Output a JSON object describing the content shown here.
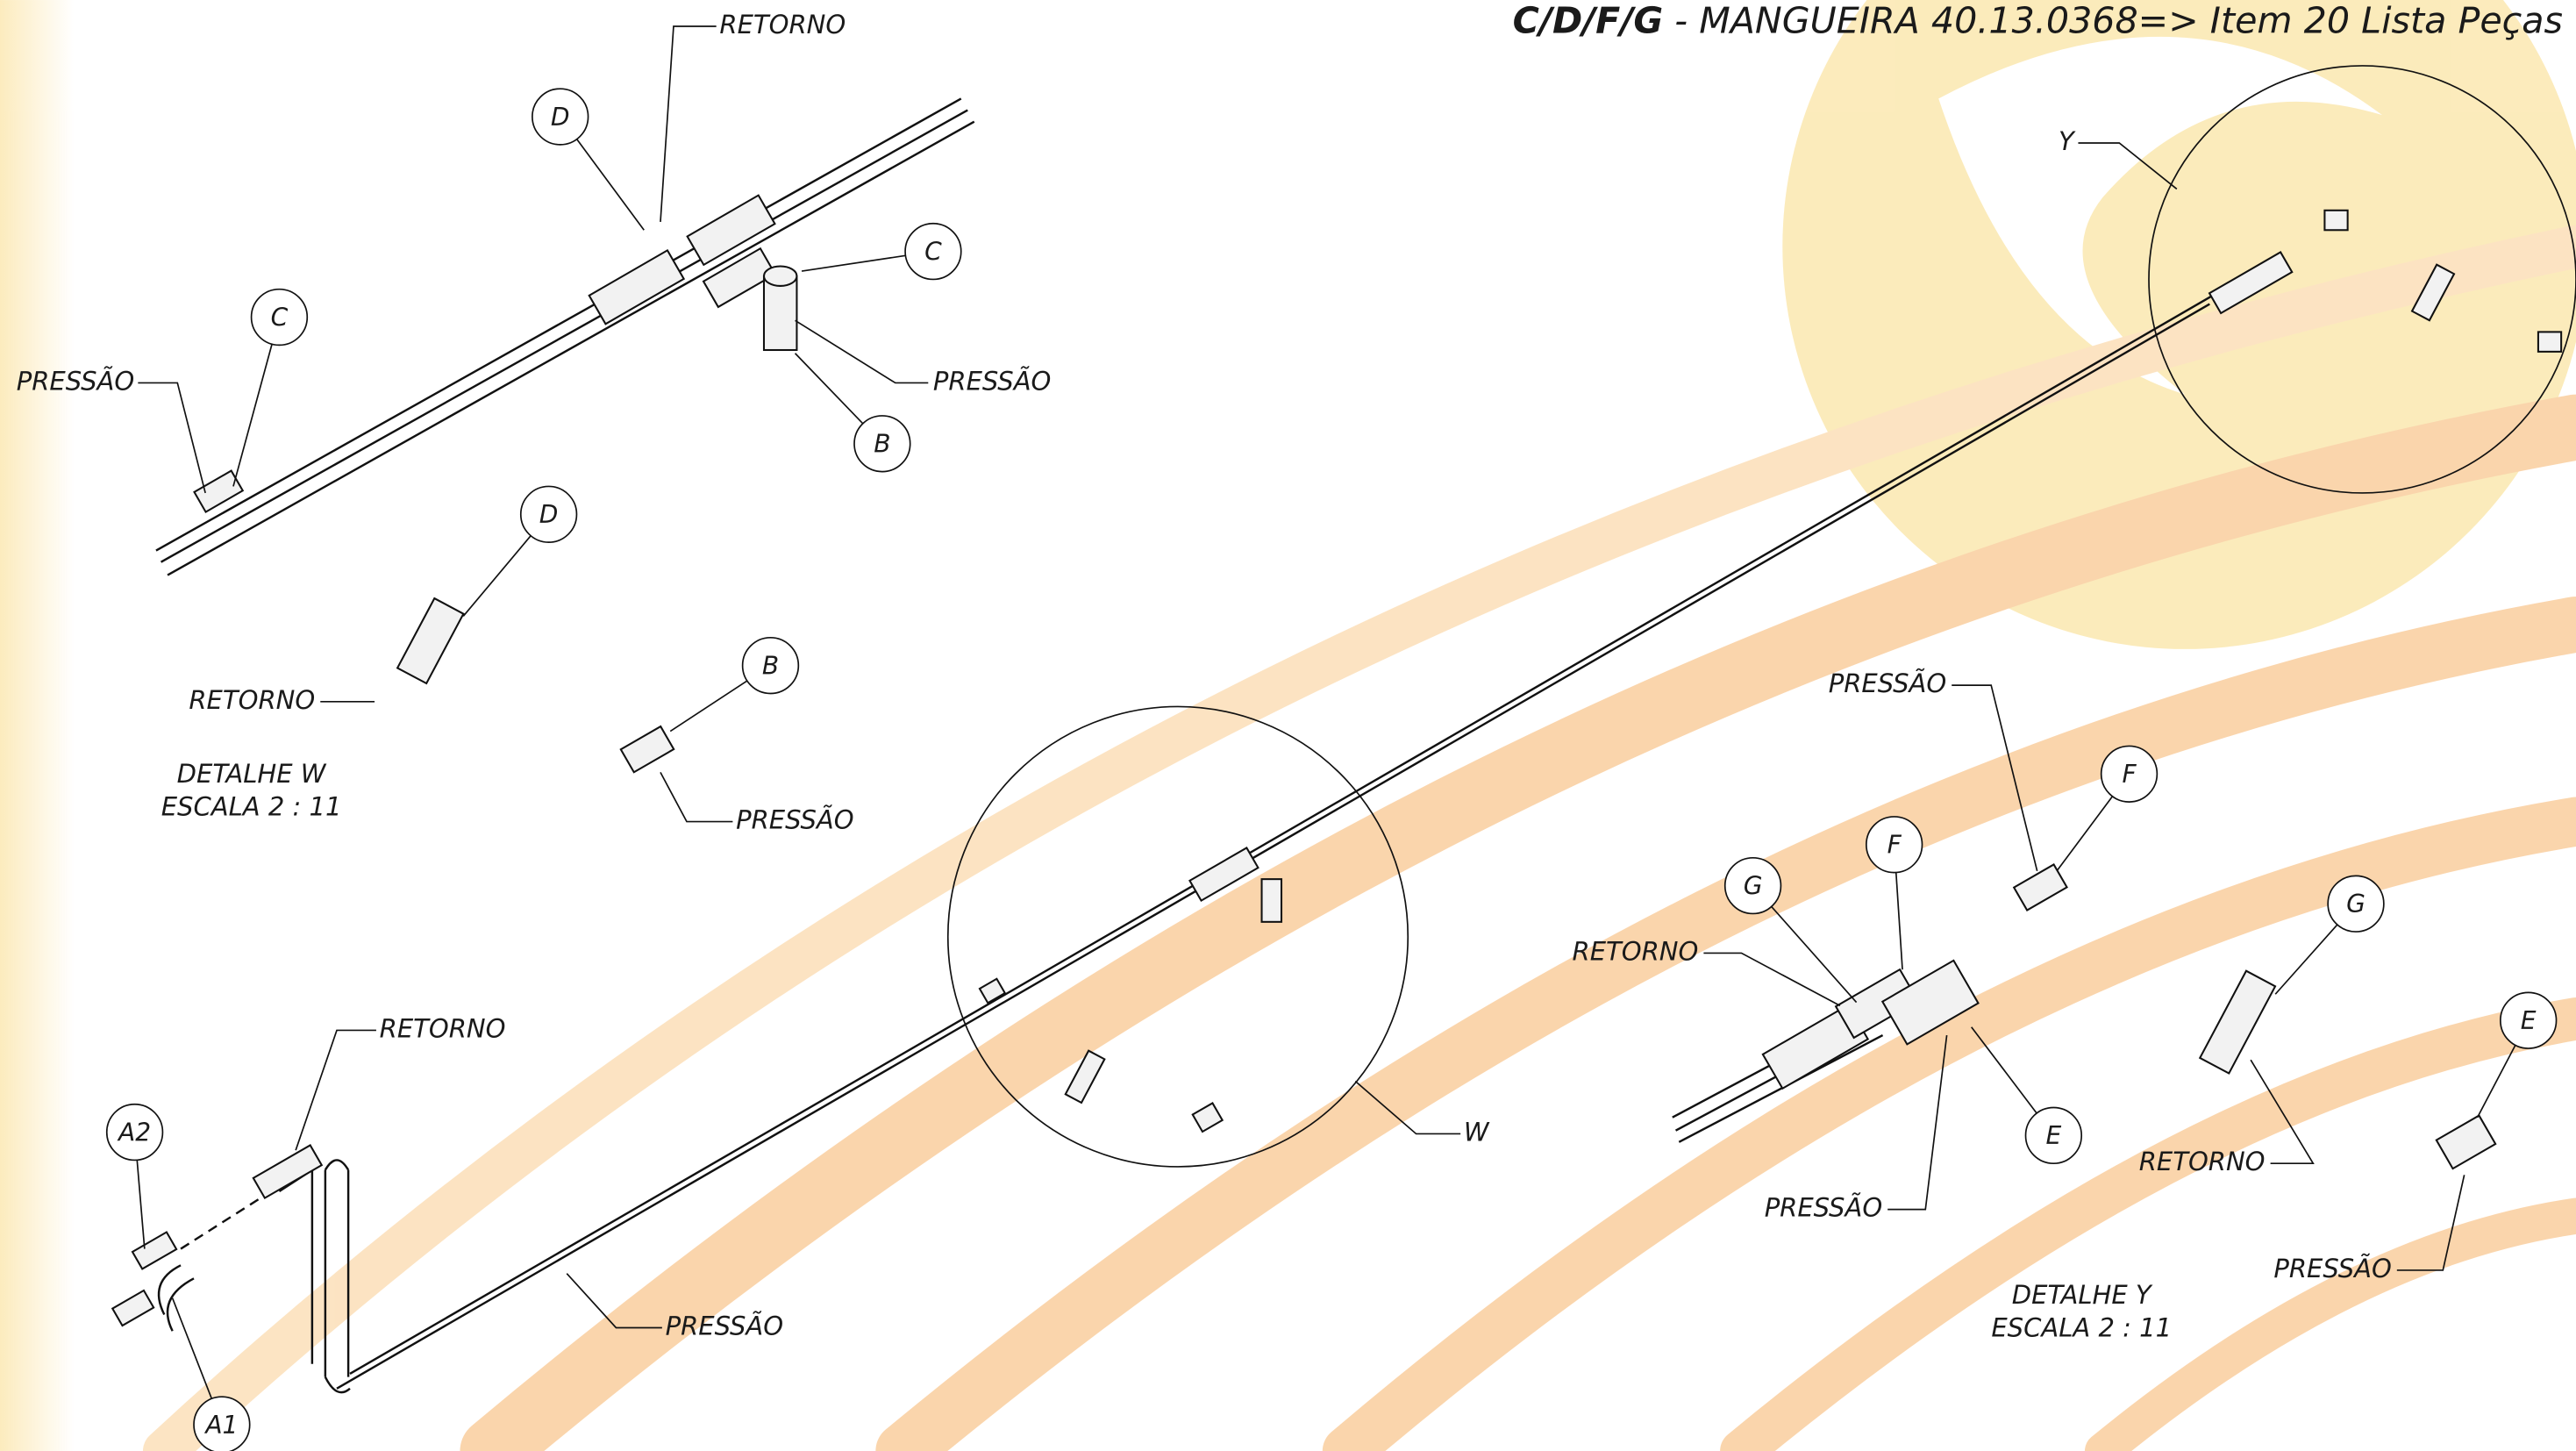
{
  "title": {
    "code": "C/D/F/G",
    "text": " - MANGUEIRA 40.13.0368=> Item 20 Lista Peças"
  },
  "callouts": [
    "D",
    "C",
    "C",
    "B",
    "D",
    "B",
    "A2",
    "A1",
    "G",
    "F",
    "F",
    "G",
    "E",
    "E"
  ],
  "labels": [
    "RETORNO",
    "PRESSÃO",
    "PRESSÃO",
    "RETORNO",
    "PRESSÃO",
    "RETORNO",
    "PRESSÃO",
    "Y",
    "W",
    "PRESSÃO",
    "RETORNO",
    "PRESSÃO",
    "RETORNO",
    "PRESSÃO"
  ],
  "details": [
    {
      "name": "DETALHE W",
      "scale": "ESCALA 2 : 11"
    },
    {
      "name": "DETALHE Y",
      "scale": "ESCALA 2 : 11"
    }
  ]
}
